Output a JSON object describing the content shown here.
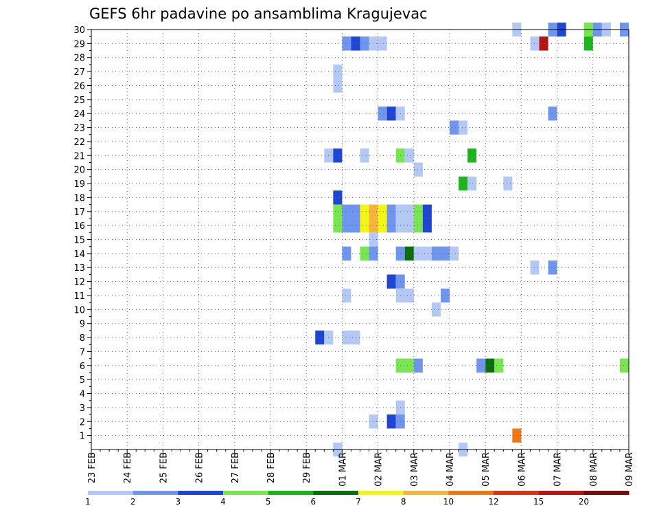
{
  "chart_data": {
    "type": "heatmap",
    "title": "GEFS 6hr padavine po ansamblima Kragujevac",
    "x_tick_labels": [
      "23 FEB",
      "24 FEB",
      "25 FEB",
      "26 FEB",
      "27 FEB",
      "28 FEB",
      "29 FEB",
      "01 MAR",
      "02 MAR",
      "03 MAR",
      "04 MAR",
      "05 MAR",
      "06 MAR",
      "07 MAR",
      "08 MAR",
      "09 MAR"
    ],
    "y_tick_labels": [
      "1",
      "2",
      "3",
      "4",
      "5",
      "6",
      "7",
      "8",
      "9",
      "10",
      "11",
      "12",
      "13",
      "14",
      "15",
      "16",
      "17",
      "18",
      "19",
      "20",
      "21",
      "22",
      "23",
      "24",
      "25",
      "26",
      "27",
      "28",
      "29",
      "30"
    ],
    "x_range_days": [
      0,
      15
    ],
    "y_range": [
      0,
      30
    ],
    "grid": true,
    "colorbar": {
      "labels": [
        "1",
        "2",
        "3",
        "4",
        "5",
        "6",
        "7",
        "8",
        "10",
        "12",
        "15",
        "20"
      ],
      "colors": [
        "#b4c8f5",
        "#6e96ee",
        "#1e46d2",
        "#78e650",
        "#1eb41e",
        "#0a6e0a",
        "#f5f514",
        "#f5b43c",
        "#f07814",
        "#dc3214",
        "#b41414",
        "#780a0a"
      ]
    },
    "cells": [
      {
        "member": 30,
        "x": [
          11.75,
          12
        ],
        "level": 1
      },
      {
        "member": 30,
        "x": [
          12.75,
          13
        ],
        "level": 2
      },
      {
        "member": 30,
        "x": [
          13,
          13.25
        ],
        "level": 3
      },
      {
        "member": 30,
        "x": [
          13.75,
          14
        ],
        "level": 4
      },
      {
        "member": 30,
        "x": [
          14,
          14.25
        ],
        "level": 2
      },
      {
        "member": 30,
        "x": [
          14.25,
          14.5
        ],
        "level": 1
      },
      {
        "member": 30,
        "x": [
          14.75,
          15
        ],
        "level": 2
      },
      {
        "member": 29,
        "x": [
          7,
          7.25
        ],
        "level": 2
      },
      {
        "member": 29,
        "x": [
          7.25,
          7.5
        ],
        "level": 3
      },
      {
        "member": 29,
        "x": [
          7.5,
          7.75
        ],
        "level": 2
      },
      {
        "member": 29,
        "x": [
          7.75,
          8.25
        ],
        "level": 1
      },
      {
        "member": 29,
        "x": [
          12.25,
          12.5
        ],
        "level": 1
      },
      {
        "member": 29,
        "x": [
          12.5,
          12.75
        ],
        "level": 11
      },
      {
        "member": 29,
        "x": [
          13.75,
          14
        ],
        "level": 5
      },
      {
        "member": 27,
        "x": [
          6.75,
          7
        ],
        "level": 1
      },
      {
        "member": 26,
        "x": [
          6.75,
          7
        ],
        "level": 1
      },
      {
        "member": 24,
        "x": [
          8,
          8.25
        ],
        "level": 2
      },
      {
        "member": 24,
        "x": [
          8.25,
          8.5
        ],
        "level": 3
      },
      {
        "member": 24,
        "x": [
          8.5,
          8.75
        ],
        "level": 1
      },
      {
        "member": 24,
        "x": [
          12.75,
          13
        ],
        "level": 2
      },
      {
        "member": 23,
        "x": [
          10,
          10.25
        ],
        "level": 2
      },
      {
        "member": 23,
        "x": [
          10.25,
          10.5
        ],
        "level": 1
      },
      {
        "member": 21,
        "x": [
          6.5,
          6.75
        ],
        "level": 1
      },
      {
        "member": 21,
        "x": [
          6.75,
          7
        ],
        "level": 3
      },
      {
        "member": 21,
        "x": [
          7.5,
          7.75
        ],
        "level": 1
      },
      {
        "member": 21,
        "x": [
          8.5,
          8.75
        ],
        "level": 4
      },
      {
        "member": 21,
        "x": [
          8.75,
          9
        ],
        "level": 1
      },
      {
        "member": 21,
        "x": [
          10.5,
          10.75
        ],
        "level": 5
      },
      {
        "member": 20,
        "x": [
          9,
          9.25
        ],
        "level": 1
      },
      {
        "member": 19,
        "x": [
          10.25,
          10.5
        ],
        "level": 5
      },
      {
        "member": 19,
        "x": [
          10.5,
          10.75
        ],
        "level": 1
      },
      {
        "member": 19,
        "x": [
          11.5,
          11.75
        ],
        "level": 1
      },
      {
        "member": 18,
        "x": [
          6.75,
          7
        ],
        "level": 3
      },
      {
        "member": 17,
        "x": [
          6.75,
          7
        ],
        "level": 4
      },
      {
        "member": 17,
        "x": [
          7,
          7.5
        ],
        "level": 2
      },
      {
        "member": 17,
        "x": [
          7.5,
          7.75
        ],
        "level": 7
      },
      {
        "member": 17,
        "x": [
          7.75,
          8
        ],
        "level": 8
      },
      {
        "member": 17,
        "x": [
          8,
          8.25
        ],
        "level": 7
      },
      {
        "member": 17,
        "x": [
          8.25,
          8.5
        ],
        "level": 2
      },
      {
        "member": 17,
        "x": [
          8.5,
          9
        ],
        "level": 1
      },
      {
        "member": 17,
        "x": [
          9,
          9.25
        ],
        "level": 4
      },
      {
        "member": 17,
        "x": [
          9.25,
          9.5
        ],
        "level": 3
      },
      {
        "member": 16,
        "x": [
          6.75,
          7
        ],
        "level": 4
      },
      {
        "member": 16,
        "x": [
          7,
          7.5
        ],
        "level": 2
      },
      {
        "member": 16,
        "x": [
          7.5,
          7.75
        ],
        "level": 7
      },
      {
        "member": 16,
        "x": [
          7.75,
          8
        ],
        "level": 8
      },
      {
        "member": 16,
        "x": [
          8,
          8.25
        ],
        "level": 7
      },
      {
        "member": 16,
        "x": [
          8.25,
          8.5
        ],
        "level": 2
      },
      {
        "member": 16,
        "x": [
          8.5,
          9
        ],
        "level": 1
      },
      {
        "member": 16,
        "x": [
          9,
          9.25
        ],
        "level": 4
      },
      {
        "member": 16,
        "x": [
          9.25,
          9.5
        ],
        "level": 3
      },
      {
        "member": 15,
        "x": [
          7.75,
          8
        ],
        "level": 1
      },
      {
        "member": 14,
        "x": [
          7,
          7.25
        ],
        "level": 2
      },
      {
        "member": 14,
        "x": [
          7.5,
          7.75
        ],
        "level": 4
      },
      {
        "member": 14,
        "x": [
          7.75,
          8
        ],
        "level": 2
      },
      {
        "member": 14,
        "x": [
          8.5,
          8.75
        ],
        "level": 2
      },
      {
        "member": 14,
        "x": [
          8.75,
          9
        ],
        "level": 6
      },
      {
        "member": 14,
        "x": [
          9,
          9.5
        ],
        "level": 1
      },
      {
        "member": 14,
        "x": [
          9.5,
          10
        ],
        "level": 2
      },
      {
        "member": 14,
        "x": [
          10,
          10.25
        ],
        "level": 1
      },
      {
        "member": 13,
        "x": [
          12.25,
          12.5
        ],
        "level": 1
      },
      {
        "member": 13,
        "x": [
          12.75,
          13
        ],
        "level": 2
      },
      {
        "member": 12,
        "x": [
          8.25,
          8.5
        ],
        "level": 3
      },
      {
        "member": 12,
        "x": [
          8.5,
          8.75
        ],
        "level": 2
      },
      {
        "member": 11,
        "x": [
          7,
          7.25
        ],
        "level": 1
      },
      {
        "member": 11,
        "x": [
          8.5,
          9
        ],
        "level": 1
      },
      {
        "member": 11,
        "x": [
          9.75,
          10
        ],
        "level": 2
      },
      {
        "member": 10,
        "x": [
          9.5,
          9.75
        ],
        "level": 1
      },
      {
        "member": 8,
        "x": [
          6.25,
          6.5
        ],
        "level": 3
      },
      {
        "member": 8,
        "x": [
          6.5,
          6.75
        ],
        "level": 1
      },
      {
        "member": 8,
        "x": [
          7,
          7.5
        ],
        "level": 1
      },
      {
        "member": 6,
        "x": [
          8.5,
          9
        ],
        "level": 4
      },
      {
        "member": 6,
        "x": [
          9,
          9.25
        ],
        "level": 2
      },
      {
        "member": 6,
        "x": [
          10.75,
          11
        ],
        "level": 2
      },
      {
        "member": 6,
        "x": [
          11,
          11.25
        ],
        "level": 6
      },
      {
        "member": 6,
        "x": [
          11.25,
          11.5
        ],
        "level": 4
      },
      {
        "member": 6,
        "x": [
          14.75,
          15
        ],
        "level": 4
      },
      {
        "member": 3,
        "x": [
          8.5,
          8.75
        ],
        "level": 1
      },
      {
        "member": 2,
        "x": [
          7.75,
          8
        ],
        "level": 1
      },
      {
        "member": 2,
        "x": [
          8.25,
          8.5
        ],
        "level": 3
      },
      {
        "member": 2,
        "x": [
          8.5,
          8.75
        ],
        "level": 2
      },
      {
        "member": 1,
        "x": [
          11.75,
          12
        ],
        "level": 9
      },
      {
        "member": 0,
        "x": [
          6.75,
          7
        ],
        "level": 1
      },
      {
        "member": 0,
        "x": [
          10.25,
          10.5
        ],
        "level": 1
      }
    ]
  }
}
